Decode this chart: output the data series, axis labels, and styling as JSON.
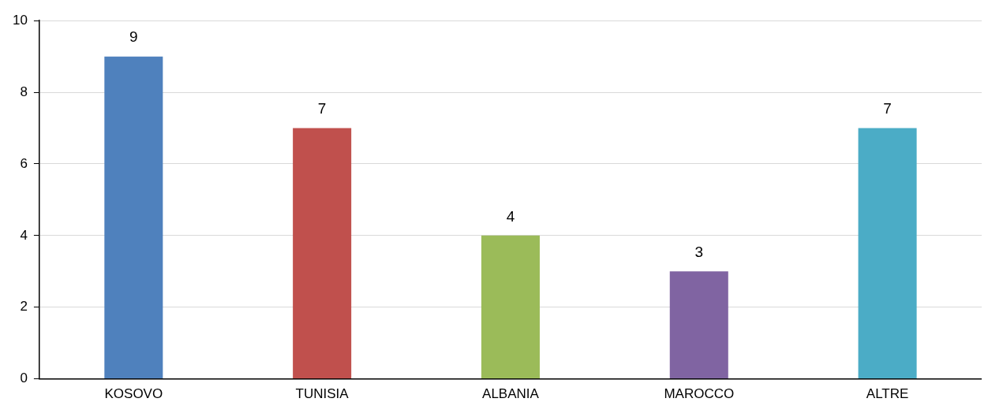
{
  "chart_data": {
    "type": "bar",
    "categories": [
      "KOSOVO",
      "TUNISIA",
      "ALBANIA",
      "MAROCCO",
      "ALTRE"
    ],
    "values": [
      9,
      7,
      4,
      3,
      7
    ],
    "colors": [
      "#4f81bd",
      "#c0504d",
      "#9bbb59",
      "#8064a2",
      "#4bacc6"
    ],
    "ylim": [
      0,
      10
    ],
    "yticks": [
      0,
      2,
      4,
      6,
      8,
      10
    ],
    "grid": "y",
    "data_labels": true
  }
}
